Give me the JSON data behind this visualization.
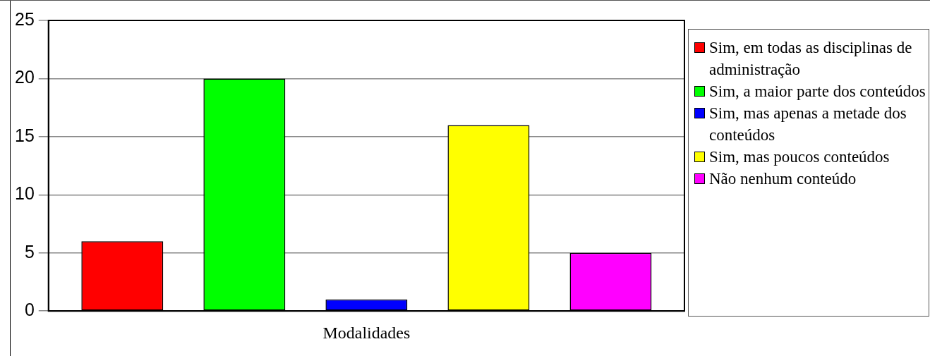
{
  "chart_data": {
    "type": "bar",
    "categories": [
      "Modalidades"
    ],
    "series": [
      {
        "name": "Sim, em todas as disciplinas de administração",
        "color": "#ff0000",
        "values": [
          6
        ]
      },
      {
        "name": "Sim, a maior parte dos conteúdos",
        "color": "#00ff00",
        "values": [
          20
        ]
      },
      {
        "name": "Sim, mas apenas a metade dos conteúdos",
        "color": "#0000ff",
        "values": [
          1
        ]
      },
      {
        "name": "Sim, mas poucos conteúdos",
        "color": "#ffff00",
        "values": [
          16
        ]
      },
      {
        "name": "Não nenhum conteúdo",
        "color": "#ff00ff",
        "values": [
          5
        ]
      }
    ],
    "ylim": [
      0,
      25
    ],
    "yticks": [
      0,
      5,
      10,
      15,
      20,
      25
    ],
    "grid": "y",
    "legend": "right"
  }
}
